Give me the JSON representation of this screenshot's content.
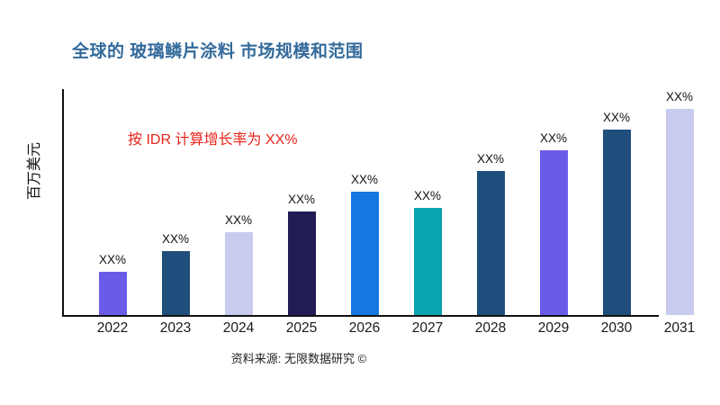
{
  "colors": {
    "background": "#ffffff",
    "title": "#336A9B",
    "annotation": "#E8251C",
    "axis": "#111111",
    "bar_label": "#111111",
    "tick_label": "#1a1a1a"
  },
  "chart_data": {
    "type": "bar",
    "title": "全球的 玻璃鳞片涂料 市场规模和范围",
    "ylabel": "百万美元",
    "xlabel": "",
    "categories": [
      "2022",
      "2023",
      "2024",
      "2025",
      "2026",
      "2027",
      "2028",
      "2029",
      "2030",
      "2031"
    ],
    "values": [
      21,
      31,
      40,
      50,
      60,
      52,
      70,
      80,
      90,
      100
    ],
    "ylim": [
      0,
      105
    ],
    "grid": false,
    "legend": false,
    "bar_labels": [
      "XX%",
      "XX%",
      "XX%",
      "XX%",
      "XX%",
      "XX%",
      "XX%",
      "XX%",
      "XX%",
      "XX%"
    ],
    "bar_colors": [
      "#6B5CE8",
      "#1F4E7C",
      "#C8CAEF",
      "#221D55",
      "#1578E2",
      "#0AA3B0",
      "#1F4E7C",
      "#6B5CE8",
      "#1F4E7C",
      "#C8CAEF"
    ],
    "annotation": "按 IDR 计算增长率为 XX%",
    "source": "资料来源: 无限数据研究 ©"
  }
}
